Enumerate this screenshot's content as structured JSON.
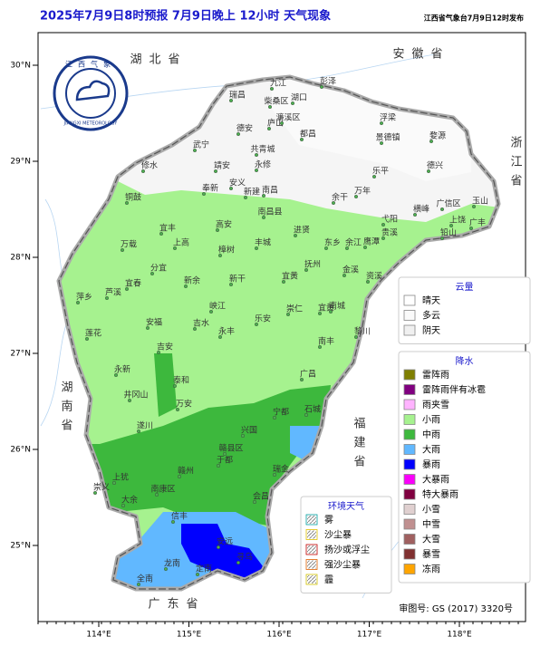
{
  "header": {
    "title": "2025年7月9日8时预报 7月9日晚上 12小时 天气现象",
    "publisher": "江西省气象台7月9日12时发布"
  },
  "logo": {
    "name": "江西气象",
    "en": "JIANGXI METEOROLOGY"
  },
  "axes": {
    "lon_ticks": [
      {
        "value": 114,
        "label": "114°E"
      },
      {
        "value": 115,
        "label": "115°E"
      },
      {
        "value": 116,
        "label": "116°E"
      },
      {
        "value": 117,
        "label": "117°E"
      },
      {
        "value": 118,
        "label": "118°E"
      }
    ],
    "lat_ticks": [
      {
        "value": 30,
        "label": "30°N"
      },
      {
        "value": 29,
        "label": "29°N"
      },
      {
        "value": 28,
        "label": "28°N"
      },
      {
        "value": 27,
        "label": "27°N"
      },
      {
        "value": 26,
        "label": "26°N"
      },
      {
        "value": 25,
        "label": "25°N"
      }
    ]
  },
  "provinces": [
    "湖北省",
    "安徽省",
    "浙江省",
    "湖南省",
    "福建省",
    "广东省"
  ],
  "cities": [
    "九江",
    "湖口",
    "彭泽",
    "瑞昌",
    "柴桑区",
    "庐山",
    "濂溪区",
    "都昌",
    "浮梁",
    "景德镇",
    "婺源",
    "德安",
    "共青城",
    "武宁",
    "永修",
    "修水",
    "靖安",
    "安义",
    "奉新",
    "南昌",
    "新建",
    "余干",
    "万年",
    "乐平",
    "德兴",
    "玉山",
    "广信区",
    "上饶",
    "广丰",
    "横峰",
    "弋阳",
    "铅山",
    "贵溪",
    "鹰潭",
    "余江",
    "东乡",
    "进贤",
    "南昌县",
    "丰城",
    "高安",
    "宜丰",
    "铜鼓",
    "上高",
    "万载",
    "樟树",
    "新干",
    "抚州",
    "金溪",
    "资溪",
    "南城",
    "黎川",
    "南丰",
    "宜黄",
    "崇仁",
    "乐安",
    "峡江",
    "新余",
    "分宜",
    "宜春",
    "萍乡",
    "芦溪",
    "莲花",
    "安福",
    "吉水",
    "吉安",
    "永丰",
    "永新",
    "井冈山",
    "遂川",
    "泰和",
    "万安",
    "兴国",
    "宁都",
    "广昌",
    "石城",
    "瑞金",
    "于都",
    "赣州",
    "上犹",
    "崇义",
    "大余",
    "南康区",
    "信丰",
    "安远",
    "会昌",
    "龙南",
    "定南",
    "全南",
    "寻乌",
    "赣县区",
    "宜黄"
  ],
  "legend": {
    "cloud": {
      "title": "云量",
      "items": [
        {
          "label": "晴天",
          "color": "#ffffff"
        },
        {
          "label": "多云",
          "color": "#fafafa"
        },
        {
          "label": "阴天",
          "color": "#f0f0f0"
        }
      ]
    },
    "precip": {
      "title": "降水",
      "items": [
        {
          "label": "雷阵雨",
          "color": "#7f7f00"
        },
        {
          "label": "雷阵雨伴有冰雹",
          "color": "#800080"
        },
        {
          "label": "雨夹雪",
          "color": "#ffb3ff"
        },
        {
          "label": "小雨",
          "color": "#a6f28f"
        },
        {
          "label": "中雨",
          "color": "#3db83d"
        },
        {
          "label": "大雨",
          "color": "#61b8ff"
        },
        {
          "label": "暴雨",
          "color": "#0000fe"
        },
        {
          "label": "大暴雨",
          "color": "#fa00fa"
        },
        {
          "label": "特大暴雨",
          "color": "#800040"
        },
        {
          "label": "小雪",
          "color": "#e0d0d0"
        },
        {
          "label": "中雪",
          "color": "#c09090"
        },
        {
          "label": "大雪",
          "color": "#a06060"
        },
        {
          "label": "暴雪",
          "color": "#803030"
        },
        {
          "label": "冻雨",
          "color": "#ffa500"
        }
      ]
    },
    "env": {
      "title": "环境天气",
      "items": [
        {
          "label": "雾",
          "color": "#00a0a0"
        },
        {
          "label": "沙尘暴",
          "color": "#e0c000"
        },
        {
          "label": "扬沙或浮尘",
          "color": "#c00000"
        },
        {
          "label": "强沙尘暴",
          "color": "#e06000"
        },
        {
          "label": "霾",
          "color": "#d0c000"
        }
      ]
    }
  },
  "approval": "审图号: GS (2017) 3320号"
}
